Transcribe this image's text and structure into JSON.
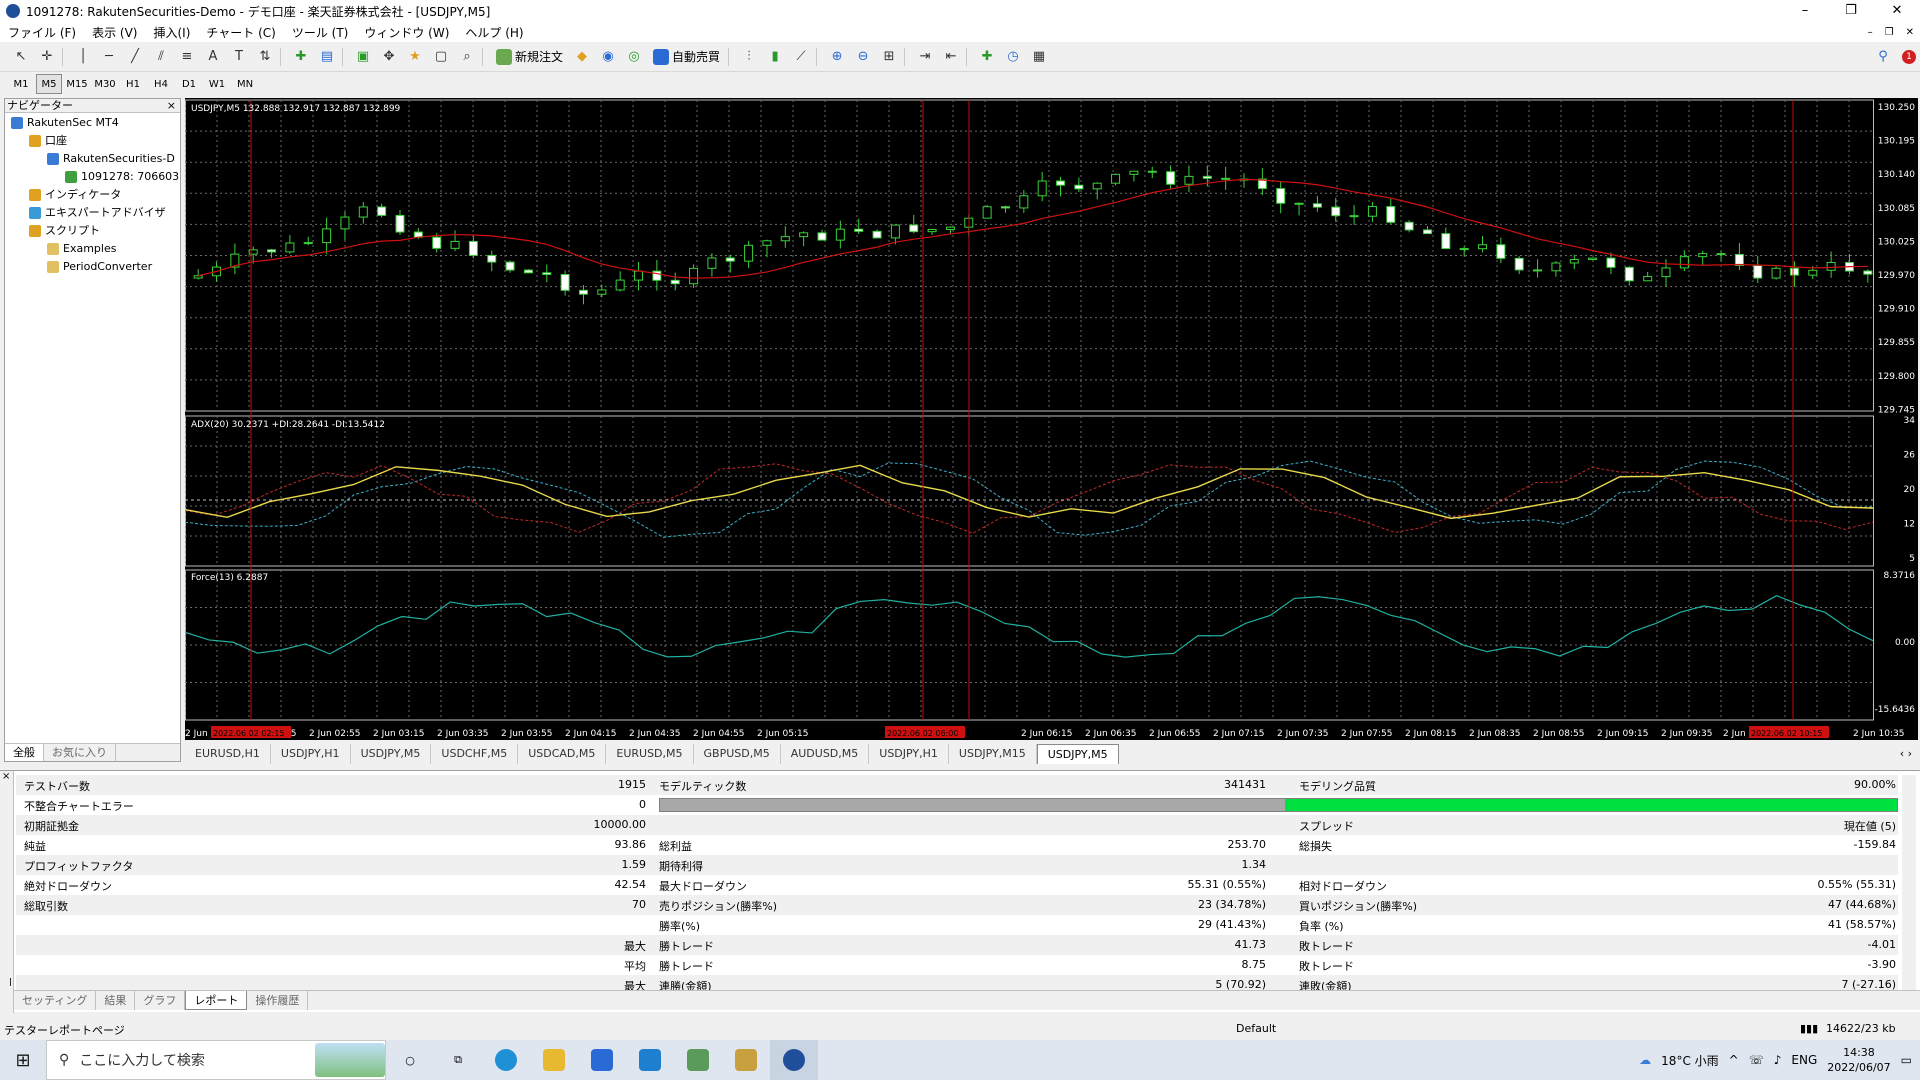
{
  "window": {
    "title": "1091278: RakutenSecurities-Demo - デモ口座 - 楽天証券株式会社 - [USDJPY,M5]",
    "controls": [
      "–",
      "❐",
      "✕"
    ]
  },
  "menu": [
    "ファイル (F)",
    "表示 (V)",
    "挿入(I)",
    "チャート (C)",
    "ツール (T)",
    "ウィンドウ (W)",
    "ヘルプ (H)"
  ],
  "toolbar": {
    "new_order": "新規注文",
    "auto_trade": "自動売買"
  },
  "timeframes": [
    "M1",
    "M5",
    "M15",
    "M30",
    "H1",
    "H4",
    "D1",
    "W1",
    "MN"
  ],
  "active_timeframe": "M5",
  "navigator": {
    "title": "ナビゲーター",
    "items": [
      {
        "label": "RakutenSec MT4",
        "level": 0,
        "color": "#3a7bd5"
      },
      {
        "label": "口座",
        "level": 1,
        "color": "#e0a020"
      },
      {
        "label": "RakutenSecurities-D",
        "level": 2,
        "color": "#3a7bd5"
      },
      {
        "label": "1091278: 706603",
        "level": 3,
        "color": "#40a040"
      },
      {
        "label": "インディケータ",
        "level": 1,
        "color": "#e0a020"
      },
      {
        "label": "エキスパートアドバイザ",
        "level": 1,
        "color": "#3a9ad5"
      },
      {
        "label": "スクリプト",
        "level": 1,
        "color": "#e0a020"
      },
      {
        "label": "Examples",
        "level": 2,
        "color": "#e0c060"
      },
      {
        "label": "PeriodConverter",
        "level": 2,
        "color": "#e0c060"
      }
    ],
    "tabs": [
      "全般",
      "お気に入り"
    ]
  },
  "chart": {
    "main_label": "USDJPY,M5  132.888 132.917 132.887 132.899",
    "adx_label": "ADX(20) 30.2371 +DI:28.2641 -DI:13.5412",
    "force_label": "Force(13) 6.2887",
    "price_ticks": [
      "130.250",
      "130.195",
      "130.140",
      "130.085",
      "130.025",
      "129.970",
      "129.910",
      "129.855",
      "129.800",
      "129.745"
    ],
    "adx_ticks": [
      "34",
      "26",
      "20",
      "12",
      "5"
    ],
    "force_ticks": [
      "8.3716",
      "0.00",
      "-15.6436"
    ],
    "time_ticks": [
      "2 Jun",
      "2 Jun 02:35",
      "2 Jun 02:55",
      "2 Jun 03:15",
      "2 Jun 03:35",
      "2 Jun 03:55",
      "2 Jun 04:15",
      "2 Jun 04:35",
      "2 Jun 04:55",
      "2 Jun 05:15",
      "2 Jun 06:15",
      "2 Jun 06:35",
      "2 Jun 06:55",
      "2 Jun 07:15",
      "2 Jun 07:35",
      "2 Jun 07:55",
      "2 Jun 08:15",
      "2 Jun 08:35",
      "2 Jun 08:55",
      "2 Jun 09:15",
      "2 Jun 09:35",
      "2 Jun",
      "2 Jun 10:35"
    ],
    "highlight_times": [
      "2022.06.02 02:15",
      "2022.06.02 06:00",
      "2022.06.02 10:15"
    ],
    "colors": {
      "ma": "#d01010",
      "adx": "#e8d84a",
      "plus_di": "#3ab0c8",
      "minus_di": "#c02828",
      "force": "#20b0a0",
      "grid": "#6a6a6a",
      "vline": "#c01010"
    }
  },
  "symbol_tabs": [
    "EURUSD,H1",
    "USDJPY,H1",
    "USDJPY,M5",
    "USDCHF,M5",
    "USDCAD,M5",
    "EURUSD,M5",
    "GBPUSD,M5",
    "AUDUSD,M5",
    "USDJPY,H1",
    "USDJPY,M15",
    "USDJPY,M5"
  ],
  "active_symbol_tab": 10,
  "report": {
    "rows": [
      [
        "テストバー数",
        "1915",
        "モデルティック数",
        "341431",
        "モデリング品質",
        "90.00%"
      ],
      [
        "不整合チャートエラー",
        "0",
        "",
        "",
        "",
        ""
      ],
      [
        "初期証拠金",
        "10000.00",
        "",
        "",
        "スプレッド",
        "現在値 (5)"
      ],
      [
        "純益",
        "93.86",
        "総利益",
        "253.70",
        "総損失",
        "-159.84"
      ],
      [
        "プロフィットファクタ",
        "1.59",
        "期待利得",
        "1.34",
        "",
        ""
      ],
      [
        "絶対ドローダウン",
        "42.54",
        "最大ドローダウン",
        "55.31 (0.55%)",
        "相対ドローダウン",
        "0.55% (55.31)"
      ],
      [
        "総取引数",
        "70",
        "売りポジション(勝率%)",
        "23 (34.78%)",
        "買いポジション(勝率%)",
        "47 (44.68%)"
      ],
      [
        "",
        "",
        "勝率(%)",
        "29 (41.43%)",
        "負率 (%)",
        "41 (58.57%)"
      ],
      [
        "",
        "最大",
        "勝トレード",
        "41.73",
        "敗トレード",
        "-4.01"
      ],
      [
        "",
        "平均",
        "勝トレード",
        "8.75",
        "敗トレード",
        "-3.90"
      ],
      [
        "",
        "最大",
        "連勝(金額)",
        "5 (70.92)",
        "連敗(金額)",
        "7 (-27.16)"
      ]
    ],
    "modeling_quality_fraction": 0.9,
    "side_label": "テスター"
  },
  "tester_tabs": [
    "セッティング",
    "結果",
    "グラフ",
    "レポート",
    "操作履歴"
  ],
  "active_tester_tab": 3,
  "status": {
    "left": "テスターレポートページ",
    "profile": "Default",
    "traffic": "14622/23 kb"
  },
  "taskbar": {
    "search_placeholder": "ここに入力して検索",
    "weather": "18°C 小雨",
    "lang": "ENG",
    "time": "14:38",
    "date": "2022/06/07"
  }
}
